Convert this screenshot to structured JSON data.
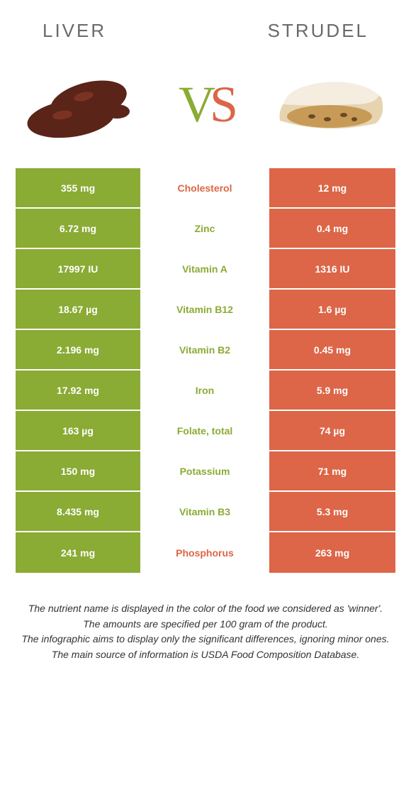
{
  "header": {
    "left": "Liver",
    "right": "Strudel"
  },
  "vs": {
    "v": "V",
    "s": "S"
  },
  "colors": {
    "liver": "#8aab34",
    "strudel": "#dc6647",
    "white": "#ffffff"
  },
  "rows": [
    {
      "left": "355 mg",
      "label": "Cholesterol",
      "right": "12 mg",
      "winner": "strudel"
    },
    {
      "left": "6.72 mg",
      "label": "Zinc",
      "right": "0.4 mg",
      "winner": "liver"
    },
    {
      "left": "17997 IU",
      "label": "Vitamin A",
      "right": "1316 IU",
      "winner": "liver"
    },
    {
      "left": "18.67 µg",
      "label": "Vitamin B12",
      "right": "1.6 µg",
      "winner": "liver"
    },
    {
      "left": "2.196 mg",
      "label": "Vitamin B2",
      "right": "0.45 mg",
      "winner": "liver"
    },
    {
      "left": "17.92 mg",
      "label": "Iron",
      "right": "5.9 mg",
      "winner": "liver"
    },
    {
      "left": "163 µg",
      "label": "Folate, total",
      "right": "74 µg",
      "winner": "liver"
    },
    {
      "left": "150 mg",
      "label": "Potassium",
      "right": "71 mg",
      "winner": "liver"
    },
    {
      "left": "8.435 mg",
      "label": "Vitamin B3",
      "right": "5.3 mg",
      "winner": "liver"
    },
    {
      "left": "241 mg",
      "label": "Phosphorus",
      "right": "263 mg",
      "winner": "strudel"
    }
  ],
  "footnotes": [
    "The nutrient name is displayed in the color of the food we considered as 'winner'.",
    "The amounts are specified per 100 gram of the product.",
    "The infographic aims to display only the significant differences, ignoring minor ones.",
    "The main source of information is USDA Food Composition Database."
  ]
}
